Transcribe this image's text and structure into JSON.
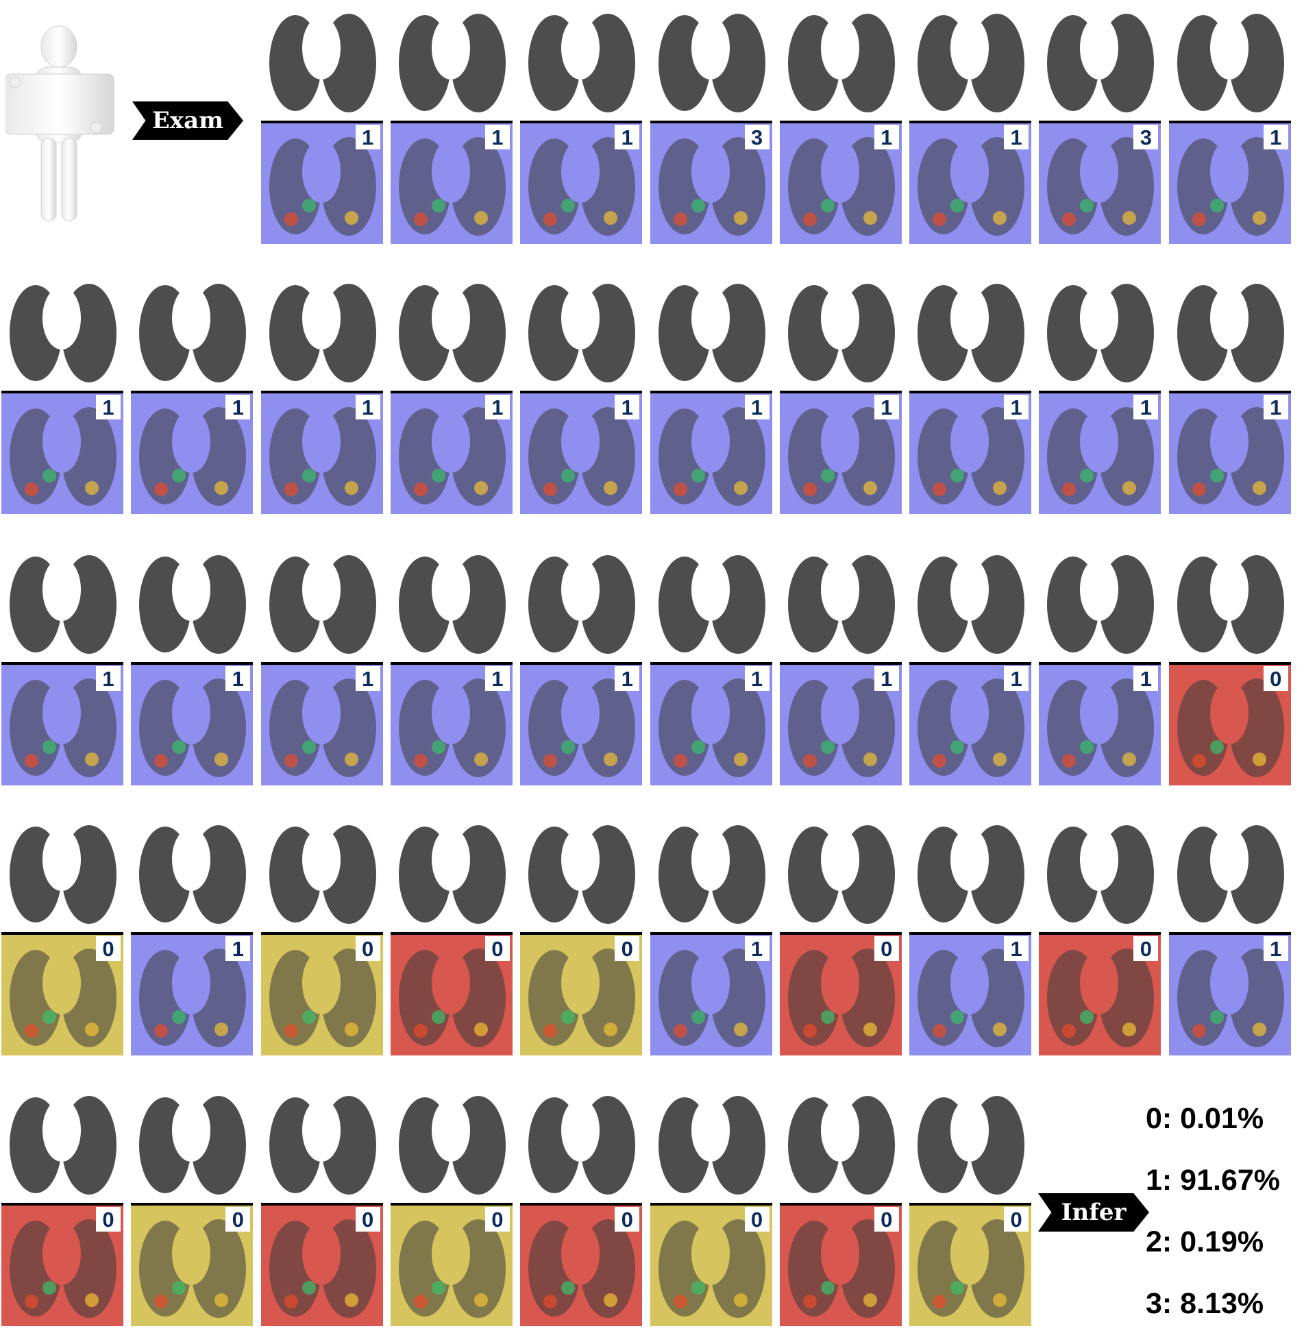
{
  "tags": {
    "exam": "Exam",
    "infer": "Infer"
  },
  "palette": {
    "ct_background": "#ffffff",
    "lung": "#3a3a3a",
    "overlay_blue": "#8f8ff0",
    "overlay_red": "#d8574f",
    "overlay_yellow": "#d6c45e",
    "label_text": "#0b2a5c"
  },
  "slices": [
    {
      "row": 1,
      "label": "1",
      "overlay": "blue"
    },
    {
      "row": 1,
      "label": "1",
      "overlay": "blue"
    },
    {
      "row": 1,
      "label": "1",
      "overlay": "blue"
    },
    {
      "row": 1,
      "label": "3",
      "overlay": "blue"
    },
    {
      "row": 1,
      "label": "1",
      "overlay": "blue"
    },
    {
      "row": 1,
      "label": "1",
      "overlay": "blue"
    },
    {
      "row": 1,
      "label": "3",
      "overlay": "blue"
    },
    {
      "row": 1,
      "label": "1",
      "overlay": "blue"
    },
    {
      "row": 2,
      "label": "1",
      "overlay": "blue"
    },
    {
      "row": 2,
      "label": "1",
      "overlay": "blue"
    },
    {
      "row": 2,
      "label": "1",
      "overlay": "blue"
    },
    {
      "row": 2,
      "label": "1",
      "overlay": "blue"
    },
    {
      "row": 2,
      "label": "1",
      "overlay": "blue"
    },
    {
      "row": 2,
      "label": "1",
      "overlay": "blue"
    },
    {
      "row": 2,
      "label": "1",
      "overlay": "blue"
    },
    {
      "row": 2,
      "label": "1",
      "overlay": "blue"
    },
    {
      "row": 2,
      "label": "1",
      "overlay": "blue"
    },
    {
      "row": 2,
      "label": "1",
      "overlay": "blue"
    },
    {
      "row": 3,
      "label": "1",
      "overlay": "blue"
    },
    {
      "row": 3,
      "label": "1",
      "overlay": "blue"
    },
    {
      "row": 3,
      "label": "1",
      "overlay": "blue"
    },
    {
      "row": 3,
      "label": "1",
      "overlay": "blue"
    },
    {
      "row": 3,
      "label": "1",
      "overlay": "blue"
    },
    {
      "row": 3,
      "label": "1",
      "overlay": "blue"
    },
    {
      "row": 3,
      "label": "1",
      "overlay": "blue"
    },
    {
      "row": 3,
      "label": "1",
      "overlay": "blue"
    },
    {
      "row": 3,
      "label": "1",
      "overlay": "blue"
    },
    {
      "row": 3,
      "label": "0",
      "overlay": "red"
    },
    {
      "row": 4,
      "label": "0",
      "overlay": "yellow"
    },
    {
      "row": 4,
      "label": "1",
      "overlay": "blue"
    },
    {
      "row": 4,
      "label": "0",
      "overlay": "yellow"
    },
    {
      "row": 4,
      "label": "0",
      "overlay": "red"
    },
    {
      "row": 4,
      "label": "0",
      "overlay": "yellow"
    },
    {
      "row": 4,
      "label": "1",
      "overlay": "blue"
    },
    {
      "row": 4,
      "label": "0",
      "overlay": "red"
    },
    {
      "row": 4,
      "label": "1",
      "overlay": "blue"
    },
    {
      "row": 4,
      "label": "0",
      "overlay": "red"
    },
    {
      "row": 4,
      "label": "1",
      "overlay": "blue"
    },
    {
      "row": 5,
      "label": "0",
      "overlay": "red"
    },
    {
      "row": 5,
      "label": "0",
      "overlay": "yellow"
    },
    {
      "row": 5,
      "label": "0",
      "overlay": "red"
    },
    {
      "row": 5,
      "label": "0",
      "overlay": "yellow"
    },
    {
      "row": 5,
      "label": "0",
      "overlay": "red"
    },
    {
      "row": 5,
      "label": "0",
      "overlay": "yellow"
    },
    {
      "row": 5,
      "label": "0",
      "overlay": "red"
    },
    {
      "row": 5,
      "label": "0",
      "overlay": "yellow"
    }
  ],
  "inference": {
    "probabilities": [
      {
        "text": "0: 0.01%"
      },
      {
        "text": "1: 91.67%"
      },
      {
        "text": "2: 0.19%"
      },
      {
        "text": "3: 8.13%"
      }
    ]
  }
}
